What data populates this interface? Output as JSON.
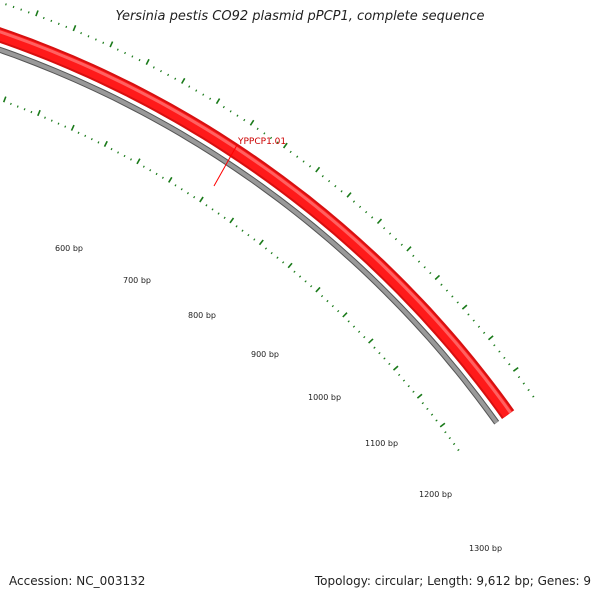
{
  "title": "Yersinia pestis CO92 plasmid pPCP1, complete sequence",
  "accession": "Accession: NC_003132",
  "topology_info": "Topology: circular; Length: 9,612 bp; Genes: 9",
  "feature": {
    "label": "YPPCP1.01",
    "color": "#ff0000"
  },
  "ruler": {
    "labels": [
      "600 bp",
      "700 bp",
      "800 bp",
      "900 bp",
      "1000 bp",
      "1100 bp",
      "1200 bp",
      "1300 bp"
    ],
    "color": "#1a7a1a"
  },
  "backbone_color": "#888888"
}
